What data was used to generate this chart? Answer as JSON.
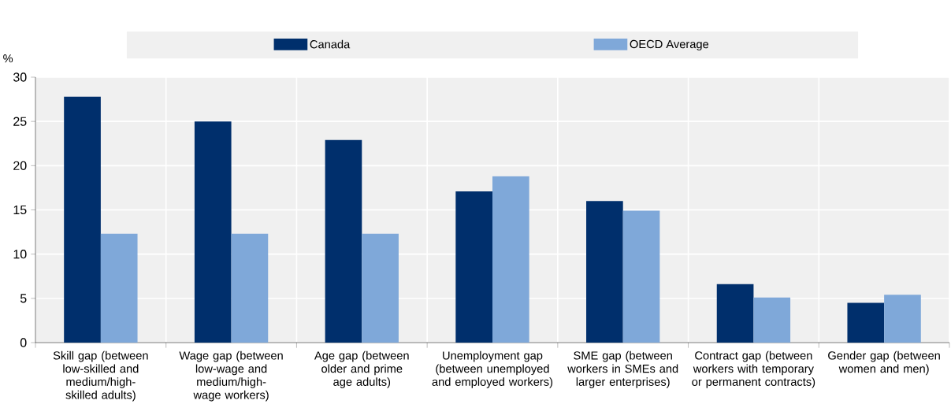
{
  "chart_data": {
    "type": "bar",
    "ylabel": "%",
    "categories": [
      "Skill gap (between low-skilled and medium/high-skilled adults)",
      "Wage gap (between low-wage and medium/high-wage workers)",
      "Age gap (between older and prime age adults)",
      "Unemployment gap (between unemployed and employed workers)",
      "SME gap (between workers in SMEs and larger enterprises)",
      "Contract gap (between workers with temporary or permanent contracts)",
      "Gender gap (between women and men)"
    ],
    "series": [
      {
        "name": "Canada",
        "color": "#002f6c",
        "values": [
          27.8,
          25.0,
          22.9,
          17.1,
          16.0,
          6.6,
          4.5
        ]
      },
      {
        "name": "OECD Average",
        "color": "#7fa8d9",
        "values": [
          12.3,
          12.3,
          12.3,
          18.8,
          14.9,
          5.1,
          5.4
        ]
      }
    ],
    "ylim": [
      0,
      30
    ],
    "yticks": [
      0,
      5,
      10,
      15,
      20,
      25,
      30
    ],
    "grid": true,
    "legend": "top"
  }
}
